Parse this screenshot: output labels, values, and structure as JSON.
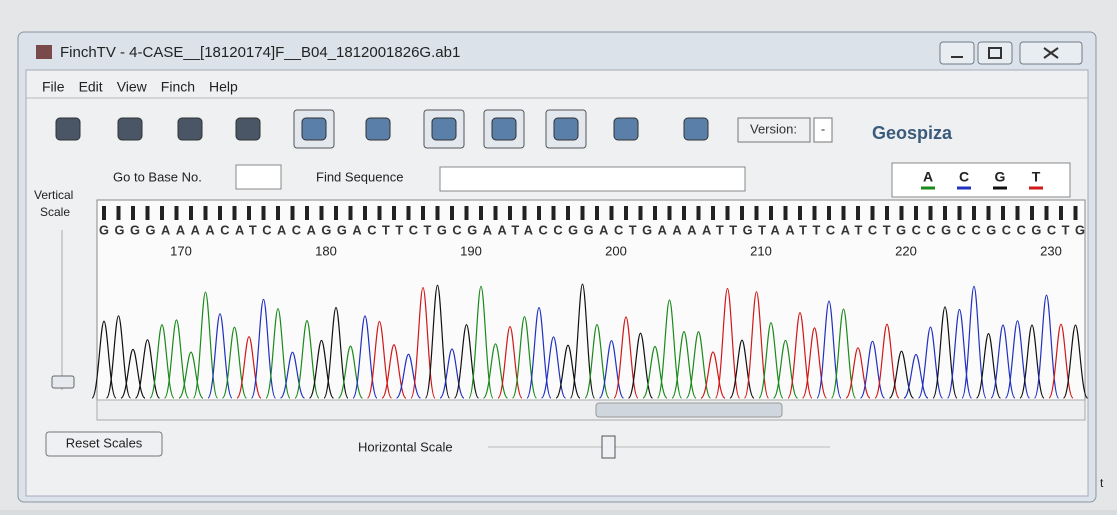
{
  "window": {
    "title": "FinchTV - 4-CASE__[18120174]F__B04_1812001826G.ab1"
  },
  "menu": [
    "File",
    "Edit",
    "View",
    "Finch",
    "Help"
  ],
  "toolbar": {
    "version_label": "Version:",
    "version_value": "-",
    "brand": "Geospiza"
  },
  "search": {
    "goto_label": "Go to Base No.",
    "find_label": "Find Sequence"
  },
  "legend": [
    "A",
    "C",
    "G",
    "T"
  ],
  "vertical_scale": [
    "Vertical",
    "Scale"
  ],
  "trace": {
    "sequence": "GGGGAAAACATCACAGGACTTCTGCGAATACCGGACTGAAAATTGTAATTCATCTGCCGCCGCCGCTG",
    "positions": [
      170,
      180,
      190,
      200,
      210,
      220,
      230
    ]
  },
  "bottom": {
    "reset": "Reset Scales",
    "horizontal_scale": "Horizontal Scale"
  },
  "edge_text": "t"
}
